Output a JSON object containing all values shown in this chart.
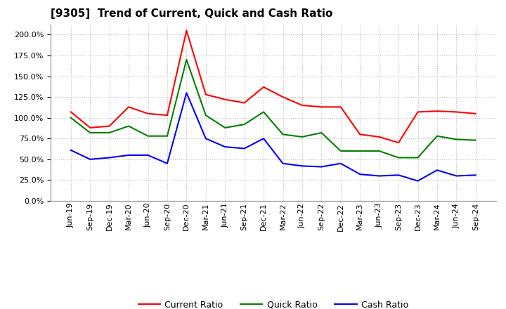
{
  "title": "[9305]  Trend of Current, Quick and Cash Ratio",
  "x_labels": [
    "Jun-19",
    "Sep-19",
    "Dec-19",
    "Mar-20",
    "Jun-20",
    "Sep-20",
    "Dec-20",
    "Mar-21",
    "Jun-21",
    "Sep-21",
    "Dec-21",
    "Mar-22",
    "Jun-22",
    "Sep-22",
    "Dec-22",
    "Mar-23",
    "Jun-23",
    "Sep-23",
    "Dec-23",
    "Mar-24",
    "Jun-24",
    "Sep-24"
  ],
  "current_ratio": [
    107,
    88,
    90,
    113,
    105,
    103,
    205,
    128,
    122,
    118,
    137,
    125,
    115,
    113,
    113,
    80,
    77,
    70,
    107,
    108,
    107,
    105
  ],
  "quick_ratio": [
    100,
    82,
    82,
    90,
    78,
    78,
    170,
    103,
    88,
    92,
    107,
    80,
    77,
    82,
    60,
    60,
    60,
    52,
    52,
    78,
    74,
    73
  ],
  "cash_ratio": [
    61,
    50,
    52,
    55,
    55,
    45,
    130,
    75,
    65,
    63,
    75,
    45,
    42,
    41,
    45,
    32,
    30,
    31,
    24,
    37,
    30,
    31
  ],
  "current_color": "#ff0000",
  "quick_color": "#008000",
  "cash_color": "#0000ff",
  "ylim": [
    0,
    212
  ],
  "yticks": [
    0,
    25,
    50,
    75,
    100,
    125,
    150,
    175,
    200
  ],
  "background_color": "#ffffff",
  "grid_color": "#bbbbbb",
  "line_width": 1.5,
  "title_fontsize": 11,
  "tick_fontsize": 8,
  "legend_fontsize": 9
}
